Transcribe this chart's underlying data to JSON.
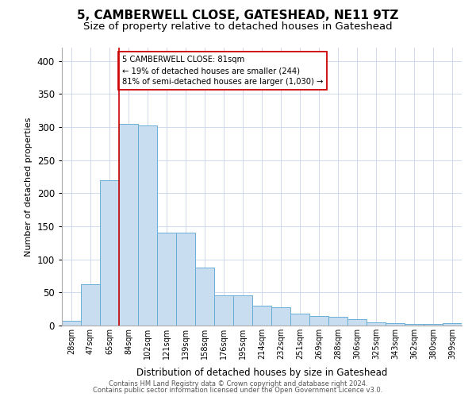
{
  "title": "5, CAMBERWELL CLOSE, GATESHEAD, NE11 9TZ",
  "subtitle": "Size of property relative to detached houses in Gateshead",
  "xlabel": "Distribution of detached houses by size in Gateshead",
  "ylabel": "Number of detached properties",
  "categories": [
    "28sqm",
    "47sqm",
    "65sqm",
    "84sqm",
    "102sqm",
    "121sqm",
    "139sqm",
    "158sqm",
    "176sqm",
    "195sqm",
    "214sqm",
    "232sqm",
    "251sqm",
    "269sqm",
    "288sqm",
    "306sqm",
    "325sqm",
    "343sqm",
    "362sqm",
    "380sqm",
    "399sqm"
  ],
  "values": [
    7,
    63,
    220,
    305,
    303,
    140,
    140,
    88,
    46,
    46,
    30,
    28,
    18,
    15,
    13,
    10,
    5,
    4,
    3,
    3,
    4
  ],
  "bar_color": "#c9ddf0",
  "bar_edge_color": "#6baed6",
  "annotation_text": "5 CAMBERWELL CLOSE: 81sqm\n← 19% of detached houses are smaller (244)\n81% of semi-detached houses are larger (1,030) →",
  "annotation_box_color": "#ffffff",
  "annotation_box_edge_color": "#cc0000",
  "footnote1": "Contains HM Land Registry data © Crown copyright and database right 2024.",
  "footnote2": "Contains public sector information licensed under the Open Government Licence v3.0.",
  "ylim": [
    0,
    420
  ],
  "yticks": [
    0,
    50,
    100,
    150,
    200,
    250,
    300,
    350,
    400
  ],
  "title_fontsize": 11,
  "subtitle_fontsize": 9.5,
  "background_color": "#ffffff",
  "grid_color": "#c8d4e8"
}
